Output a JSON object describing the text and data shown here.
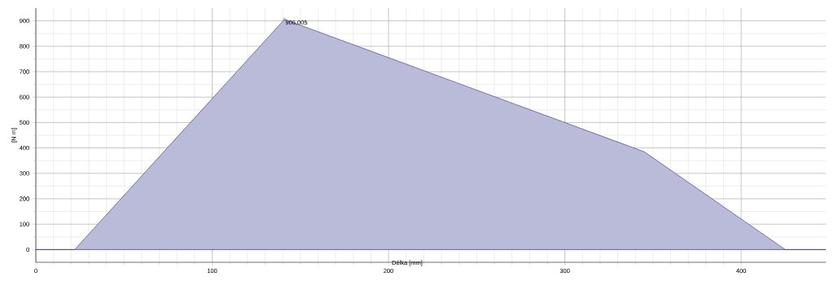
{
  "chart_data": {
    "type": "area",
    "xlabel": "Délka [mm]",
    "ylabel": "[N m]",
    "x": [
      0,
      22,
      141,
      345,
      425,
      448
    ],
    "series": [
      {
        "color": "#2e2e8c",
        "values": [
          0,
          0,
          906.005,
          385,
          0,
          0
        ]
      }
    ],
    "xlim": [
      0,
      448
    ],
    "ylim": [
      -50,
      950
    ],
    "xticks": [
      0,
      100,
      200,
      300,
      400
    ],
    "yticks": [
      0,
      100,
      200,
      300,
      400,
      500,
      600,
      700,
      800,
      900
    ],
    "grid": true,
    "annotations": [
      {
        "text": "906,005",
        "x": 141,
        "y": 906.005
      }
    ]
  }
}
